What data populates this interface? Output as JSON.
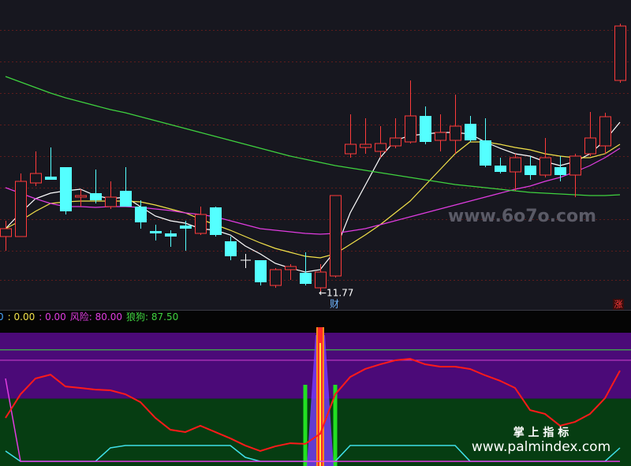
{
  "chart_data": [
    {
      "type": "candlestick",
      "ylim": [
        11.57,
        15.47
      ],
      "grid_levels": [
        15.09,
        14.69,
        14.29,
        13.89,
        13.49,
        13.09,
        12.69,
        12.29,
        11.92
      ],
      "open": [
        12.47,
        12.47,
        13.15,
        13.23,
        13.35,
        12.97,
        13.02,
        12.85,
        13.05,
        12.85,
        12.54,
        12.51,
        12.61,
        12.51,
        12.84,
        12.41,
        12.17,
        12.17,
        11.85,
        12.05,
        12.01,
        11.82,
        11.97,
        13.52,
        13.6,
        13.55,
        13.62,
        13.67,
        14.0,
        13.69,
        13.69,
        13.9,
        13.69,
        13.37,
        13.29,
        13.37,
        13.25,
        13.35,
        13.25,
        13.52,
        13.62,
        14.45
      ],
      "close": [
        12.57,
        13.17,
        13.27,
        13.19,
        12.79,
        12.99,
        12.93,
        12.97,
        12.85,
        12.65,
        12.51,
        12.47,
        12.57,
        12.75,
        12.49,
        12.22,
        12.17,
        11.89,
        12.05,
        12.09,
        11.87,
        12.02,
        12.99,
        13.64,
        13.64,
        13.65,
        13.72,
        14.0,
        13.67,
        13.79,
        13.87,
        13.69,
        13.37,
        13.29,
        13.47,
        13.25,
        13.47,
        13.25,
        13.49,
        13.72,
        13.99,
        15.14
      ],
      "high": [
        12.67,
        13.27,
        13.55,
        13.6,
        13.35,
        13.07,
        13.32,
        13.17,
        13.35,
        12.93,
        12.62,
        12.55,
        12.67,
        12.85,
        12.85,
        12.47,
        12.25,
        12.17,
        12.07,
        12.12,
        12.27,
        12.12,
        12.99,
        14.02,
        13.97,
        13.87,
        13.97,
        14.45,
        14.12,
        14.02,
        14.27,
        14.0,
        13.97,
        13.47,
        13.52,
        13.49,
        13.72,
        13.49,
        13.52,
        14.05,
        14.04,
        15.17
      ],
      "low": [
        12.29,
        12.47,
        13.11,
        13.19,
        12.75,
        12.85,
        12.89,
        12.82,
        12.85,
        12.57,
        12.42,
        12.34,
        12.29,
        12.49,
        12.47,
        12.17,
        12.07,
        11.85,
        11.82,
        11.92,
        11.85,
        11.77,
        11.95,
        13.47,
        13.52,
        13.47,
        13.59,
        13.65,
        13.64,
        13.55,
        13.52,
        13.67,
        13.35,
        13.27,
        13.05,
        13.19,
        13.22,
        13.17,
        12.97,
        13.49,
        13.52,
        14.42
      ],
      "up_color": "#ff3b3b",
      "down_color": "#54ffff",
      "flat_color": "#ffffff",
      "series": [
        {
          "color": "#ffffff",
          "values": [
            12.57,
            12.77,
            12.95,
            13.02,
            13.05,
            13.07,
            12.99,
            12.95,
            12.97,
            12.85,
            12.73,
            12.67,
            12.64,
            12.57,
            12.55,
            12.49,
            12.35,
            12.25,
            12.13,
            12.07,
            12.02,
            12.05,
            12.29,
            12.77,
            13.12,
            13.47,
            13.69,
            13.75,
            13.77,
            13.79,
            13.79,
            13.77,
            13.67,
            13.59,
            13.52,
            13.49,
            13.42,
            13.37,
            13.42,
            13.52,
            13.69,
            13.92
          ]
        },
        {
          "color": "#f2e14a",
          "values": [
            12.57,
            12.67,
            12.79,
            12.89,
            12.91,
            12.92,
            12.92,
            12.92,
            12.92,
            12.91,
            12.87,
            12.82,
            12.77,
            12.69,
            12.62,
            12.55,
            12.47,
            12.39,
            12.32,
            12.27,
            12.22,
            12.2,
            12.25,
            12.37,
            12.49,
            12.62,
            12.77,
            12.92,
            13.12,
            13.32,
            13.52,
            13.67,
            13.67,
            13.64,
            13.6,
            13.57,
            13.52,
            13.49,
            13.47,
            13.47,
            13.52,
            13.64
          ]
        },
        {
          "color": "#e03ce0",
          "values": [
            13.09,
            13.02,
            12.95,
            12.89,
            12.85,
            12.85,
            12.84,
            12.85,
            12.85,
            12.84,
            12.82,
            12.8,
            12.77,
            12.75,
            12.72,
            12.67,
            12.62,
            12.57,
            12.55,
            12.53,
            12.51,
            12.5,
            12.51,
            12.54,
            12.57,
            12.62,
            12.67,
            12.72,
            12.77,
            12.82,
            12.87,
            12.92,
            12.97,
            13.02,
            13.07,
            13.11,
            13.17,
            13.22,
            13.29,
            13.37,
            13.47,
            13.59
          ]
        },
        {
          "color": "#3fd23f",
          "values": [
            14.5,
            14.43,
            14.36,
            14.29,
            14.23,
            14.18,
            14.13,
            14.08,
            14.04,
            13.99,
            13.94,
            13.89,
            13.84,
            13.79,
            13.74,
            13.69,
            13.64,
            13.59,
            13.54,
            13.49,
            13.45,
            13.41,
            13.37,
            13.34,
            13.31,
            13.28,
            13.25,
            13.22,
            13.19,
            13.16,
            13.13,
            13.11,
            13.09,
            13.07,
            13.05,
            13.03,
            13.02,
            13.01,
            13.0,
            12.99,
            12.99,
            13.0
          ]
        }
      ],
      "low_label": {
        "value": 11.77,
        "label": "←11.77"
      },
      "markers": [
        "财",
        "涨"
      ],
      "watermark": "www.6o7o.com"
    },
    {
      "type": "indicator",
      "ylim": [
        3,
        104
      ],
      "bands": [
        {
          "range": [
            52,
            100
          ],
          "color": "#4b0a78"
        },
        {
          "range": [
            3,
            52
          ],
          "color": "#063d12"
        }
      ],
      "hlines": [
        {
          "value": 87.5,
          "color": "#3ddc3d"
        },
        {
          "value": 80,
          "color": "#d040d0"
        }
      ],
      "legend_items": [
        {
          "text": "0",
          "color": "#4aa8ff"
        },
        {
          "text": ": 0.00",
          "color": "#f2e14a"
        },
        {
          "text": ": 0.00",
          "color": "#e03ce0"
        },
        {
          "text": "风险: 80.00",
          "color": "#e03ce0"
        },
        {
          "text": "狼狗: 87.50",
          "color": "#3fd23f"
        }
      ],
      "series": [
        {
          "color": "#ff1a1a",
          "values": [
            38.0,
            55.2,
            66.7,
            69.5,
            60.9,
            59.8,
            58.6,
            58.1,
            55.2,
            49.5,
            38.0,
            29.4,
            27.7,
            32.3,
            27.7,
            23.1,
            17.9,
            13.9,
            17.3,
            19.6,
            19.1,
            26.5,
            55.2,
            67.8,
            73.6,
            77.0,
            79.9,
            81.0,
            77.0,
            75.3,
            75.3,
            73.6,
            69.0,
            65.0,
            59.8,
            43.7,
            40.9,
            32.3,
            35.1,
            40.9,
            52.3,
            72.4
          ]
        },
        {
          "color": "#3fe0e8",
          "values": [
            13.9,
            6.4,
            6.4,
            6.4,
            6.4,
            6.4,
            6.4,
            16.2,
            17.9,
            17.9,
            17.9,
            17.9,
            17.9,
            17.9,
            17.9,
            17.9,
            9.3,
            6.4,
            6.4,
            6.4,
            6.4,
            6.4,
            6.4,
            17.9,
            17.9,
            17.9,
            17.9,
            17.9,
            17.9,
            17.9,
            17.9,
            6.4,
            6.4,
            6.4,
            6.4,
            6.4,
            6.4,
            6.4,
            6.4,
            6.4,
            6.4,
            16.2
          ]
        },
        {
          "color": "#e03ce0",
          "values": [
            66.7,
            6.4,
            6.4,
            6.4,
            6.4,
            6.4,
            6.4,
            6.4,
            6.4,
            6.4,
            6.4,
            6.4,
            6.4,
            6.4,
            6.4,
            6.4,
            6.4,
            6.4,
            6.4,
            6.4,
            6.4,
            6.4,
            6.4,
            6.4,
            6.4,
            6.4,
            6.4,
            6.4,
            6.4,
            6.4,
            6.4,
            6.4,
            6.4,
            6.4,
            6.4,
            6.4,
            6.4,
            6.4,
            6.4,
            6.4,
            6.4,
            6.4
          ]
        }
      ],
      "green_bars": [
        null,
        null,
        null,
        null,
        null,
        null,
        null,
        null,
        null,
        null,
        null,
        null,
        null,
        null,
        null,
        null,
        null,
        null,
        null,
        null,
        62.1,
        null,
        62.1,
        null,
        null,
        null,
        null,
        null,
        null,
        null,
        null,
        null,
        null,
        null,
        null,
        null,
        null,
        null,
        null,
        null,
        null,
        null
      ],
      "spike_bars": [
        null,
        null,
        null,
        null,
        null,
        null,
        null,
        null,
        null,
        null,
        null,
        null,
        null,
        null,
        null,
        null,
        null,
        null,
        null,
        null,
        null,
        104,
        null,
        null,
        null,
        null,
        null,
        null,
        null,
        null,
        null,
        null,
        null,
        null,
        null,
        null,
        null,
        null,
        null,
        null,
        null,
        null
      ],
      "watermark_title": "掌 上 指 标",
      "watermark": "www.palmindex.com"
    }
  ]
}
